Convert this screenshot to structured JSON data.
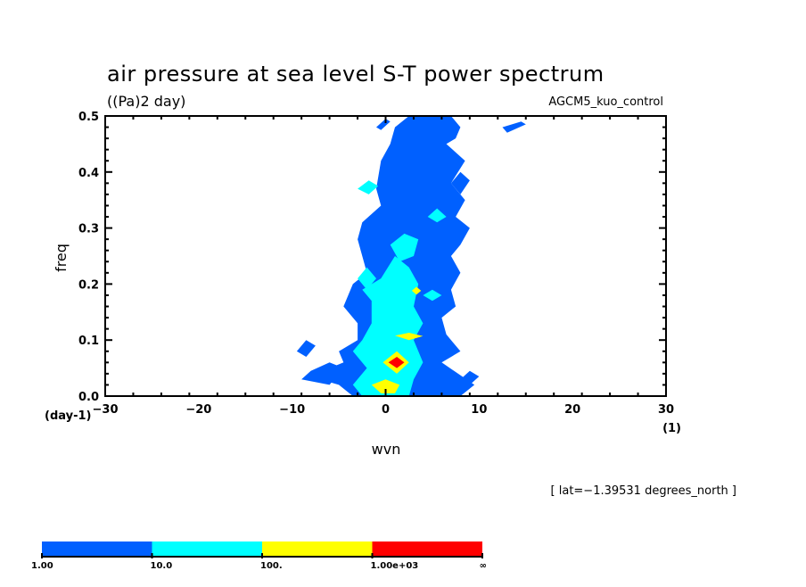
{
  "chart_data": {
    "type": "heatmap",
    "subtype": "filled-contour",
    "title": "air pressure at sea level S-T power spectrum",
    "units": "((Pa)2 day)",
    "run_label": "AGCM5_kuo_control",
    "xlabel": "wvn",
    "ylabel": "freq",
    "x_unit": "(1)",
    "y_unit": "(day-1)",
    "xlim": [
      -30,
      30
    ],
    "ylim": [
      0.0,
      0.5
    ],
    "x_major_ticks": [
      -30,
      -20,
      -10,
      0,
      10,
      20,
      30
    ],
    "x_tick_labels": [
      "−30",
      "−20",
      "−10",
      "0",
      "10",
      "20",
      "30"
    ],
    "x_minor_step": 3,
    "y_major_ticks": [
      0.0,
      0.1,
      0.2,
      0.3,
      0.4,
      0.5
    ],
    "y_tick_labels": [
      "0.0",
      "0.1",
      "0.2",
      "0.3",
      "0.4",
      "0.5"
    ],
    "y_minor_step": 0.02,
    "annotation": "[ lat=−1.39531 degrees_north ]",
    "grid": false,
    "colorbar": {
      "placement": "bottom-left",
      "levels": [
        "1.00",
        "10.0",
        "100.",
        "1.00e+03",
        "∞"
      ],
      "bins": [
        {
          "range": "1 - 10",
          "color": "#0060ff"
        },
        {
          "range": "10 - 100",
          "color": "#00ffff"
        },
        {
          "range": "100 - 1000",
          "color": "#ffff00"
        },
        {
          "range": "> 1000",
          "color": "#ff0000"
        }
      ]
    },
    "contour_regions": [
      {
        "level": "1-10",
        "color": "#0060ff",
        "points": [
          [
            -3.5,
            0
          ],
          [
            -5,
            0.02
          ],
          [
            -7,
            0.03
          ],
          [
            -6,
            0.05
          ],
          [
            -4.5,
            0.06
          ],
          [
            -5,
            0.08
          ],
          [
            -3,
            0.1
          ],
          [
            -3,
            0.13
          ],
          [
            -4.5,
            0.16
          ],
          [
            -3.5,
            0.2
          ],
          [
            -2,
            0.22
          ],
          [
            -2.5,
            0.25
          ],
          [
            -3,
            0.28
          ],
          [
            -2.5,
            0.31
          ],
          [
            -0.5,
            0.34
          ],
          [
            -1,
            0.37
          ],
          [
            -0.5,
            0.42
          ],
          [
            0.5,
            0.45
          ],
          [
            1,
            0.48
          ],
          [
            2.5,
            0.5
          ],
          [
            7,
            0.5
          ],
          [
            8,
            0.48
          ],
          [
            7.5,
            0.46
          ],
          [
            6.5,
            0.45
          ],
          [
            8.5,
            0.42
          ],
          [
            7,
            0.38
          ],
          [
            8.5,
            0.35
          ],
          [
            7.5,
            0.32
          ],
          [
            9,
            0.3
          ],
          [
            8,
            0.27
          ],
          [
            7,
            0.25
          ],
          [
            8,
            0.22
          ],
          [
            7,
            0.19
          ],
          [
            7.5,
            0.16
          ],
          [
            6,
            0.14
          ],
          [
            6.5,
            0.11
          ],
          [
            8,
            0.08
          ],
          [
            6,
            0.06
          ],
          [
            9.5,
            0.02
          ],
          [
            8,
            0
          ],
          [
            -3.5,
            0
          ]
        ]
      },
      {
        "level": "1-10",
        "color": "#0060ff",
        "points": [
          [
            -9,
            0.03
          ],
          [
            -6,
            0.02
          ],
          [
            -4.5,
            0.05
          ],
          [
            -6,
            0.06
          ],
          [
            -8,
            0.045
          ]
        ]
      },
      {
        "level": "1-10",
        "color": "#0060ff",
        "points": [
          [
            -9.5,
            0.08
          ],
          [
            -8.5,
            0.1
          ],
          [
            -7.5,
            0.09
          ],
          [
            -8.5,
            0.07
          ]
        ]
      },
      {
        "level": "1-10",
        "color": "#0060ff",
        "points": [
          [
            13,
            0.47
          ],
          [
            15,
            0.485
          ],
          [
            14.5,
            0.49
          ],
          [
            12.5,
            0.48
          ]
        ]
      },
      {
        "level": "1-10",
        "color": "#0060ff",
        "points": [
          [
            -1,
            0.48
          ],
          [
            0,
            0.495
          ],
          [
            0.5,
            0.49
          ],
          [
            -0.5,
            0.475
          ]
        ]
      },
      {
        "level": "1-10",
        "color": "#0060ff",
        "points": [
          [
            7,
            0.38
          ],
          [
            8,
            0.4
          ],
          [
            9,
            0.385
          ],
          [
            8,
            0.36
          ]
        ]
      },
      {
        "level": "1-10",
        "color": "#0060ff",
        "points": [
          [
            8,
            0.03
          ],
          [
            9,
            0.045
          ],
          [
            10,
            0.035
          ],
          [
            9,
            0.02
          ]
        ]
      },
      {
        "level": "10-100",
        "color": "#00ffff",
        "points": [
          [
            -2.5,
            0
          ],
          [
            -3.5,
            0.02
          ],
          [
            -2,
            0.05
          ],
          [
            -3.5,
            0.08
          ],
          [
            -2.5,
            0.1
          ],
          [
            -1.5,
            0.13
          ],
          [
            -1.5,
            0.17
          ],
          [
            -2.5,
            0.19
          ],
          [
            -0.5,
            0.21
          ],
          [
            1,
            0.25
          ],
          [
            2.5,
            0.23
          ],
          [
            3.5,
            0.2
          ],
          [
            3,
            0.16
          ],
          [
            4,
            0.13
          ],
          [
            3,
            0.1
          ],
          [
            4,
            0.06
          ],
          [
            3,
            0.03
          ],
          [
            2.5,
            0
          ],
          [
            -2.5,
            0
          ]
        ]
      },
      {
        "level": "10-100",
        "color": "#00ffff",
        "points": [
          [
            0.5,
            0.27
          ],
          [
            2,
            0.29
          ],
          [
            3.5,
            0.28
          ],
          [
            3,
            0.25
          ],
          [
            1.5,
            0.24
          ]
        ]
      },
      {
        "level": "10-100",
        "color": "#00ffff",
        "points": [
          [
            -3,
            0.21
          ],
          [
            -2,
            0.23
          ],
          [
            -1,
            0.21
          ],
          [
            -2,
            0.19
          ]
        ]
      },
      {
        "level": "10-100",
        "color": "#00ffff",
        "points": [
          [
            -3,
            0.37
          ],
          [
            -1.8,
            0.385
          ],
          [
            -0.8,
            0.375
          ],
          [
            -1.8,
            0.36
          ]
        ]
      },
      {
        "level": "10-100",
        "color": "#00ffff",
        "points": [
          [
            4,
            0.18
          ],
          [
            5,
            0.19
          ],
          [
            6,
            0.18
          ],
          [
            5,
            0.17
          ]
        ]
      },
      {
        "level": "10-100",
        "color": "#00ffff",
        "points": [
          [
            4.5,
            0.32
          ],
          [
            5.5,
            0.335
          ],
          [
            6.5,
            0.32
          ],
          [
            5.5,
            0.31
          ]
        ]
      },
      {
        "level": "100-1000",
        "color": "#ffff00",
        "points": [
          [
            -0.5,
            0.005
          ],
          [
            -1.5,
            0.02
          ],
          [
            0,
            0.03
          ],
          [
            1.5,
            0.02
          ],
          [
            1,
            0.005
          ]
        ]
      },
      {
        "level": "100-1000",
        "color": "#ffff00",
        "points": [
          [
            -0.3,
            0.06
          ],
          [
            1.2,
            0.08
          ],
          [
            2.5,
            0.06
          ],
          [
            1.2,
            0.04
          ]
        ]
      },
      {
        "level": "100-1000",
        "color": "#ffff00",
        "points": [
          [
            1,
            0.108
          ],
          [
            2.5,
            0.113
          ],
          [
            4,
            0.107
          ],
          [
            2.5,
            0.1
          ]
        ]
      },
      {
        "level": "100-1000",
        "color": "#ffff00",
        "points": [
          [
            2.8,
            0.188
          ],
          [
            3.3,
            0.195
          ],
          [
            3.8,
            0.188
          ],
          [
            3.3,
            0.181
          ]
        ]
      },
      {
        "level": ">1000",
        "color": "#ff0000",
        "points": [
          [
            0.3,
            0.06
          ],
          [
            1.2,
            0.07
          ],
          [
            2,
            0.06
          ],
          [
            1.2,
            0.05
          ]
        ]
      }
    ]
  }
}
